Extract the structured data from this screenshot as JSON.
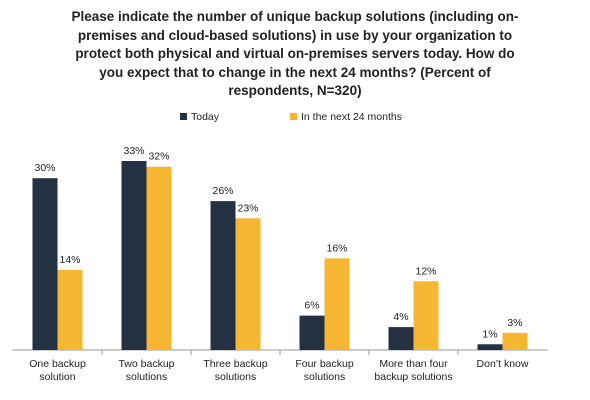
{
  "chart_data": {
    "type": "bar",
    "title": "Please indicate the number of unique backup solutions (including on-premises and cloud-based solutions) in use by your organization to protect both physical and virtual on-premises servers today. How do you expect that to change in the next 24 months? (Percent of respondents, N=320)",
    "categories": [
      "One backup solution",
      "Two backup solutions",
      "Three backup solutions",
      "Four backup solutions",
      "More than four backup solutions",
      "Don’t know"
    ],
    "series": [
      {
        "name": "Today",
        "color": "#243142",
        "values": [
          30,
          33,
          26,
          6,
          4,
          1
        ],
        "value_labels": [
          "30%",
          "33%",
          "26%",
          "6%",
          "4%",
          "1%"
        ]
      },
      {
        "name": "In the next 24 months",
        "color": "#f5b731",
        "values": [
          14,
          32,
          23,
          16,
          12,
          3
        ],
        "value_labels": [
          "14%",
          "32%",
          "23%",
          "16%",
          "12%",
          "3%"
        ]
      }
    ]
  }
}
